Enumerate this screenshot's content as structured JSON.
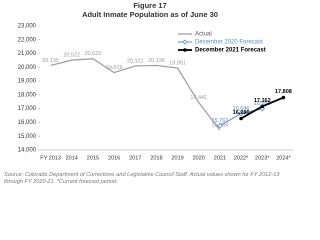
{
  "chart_data": {
    "type": "line",
    "figure_label": "Figure 17",
    "title": "Adult Inmate Population as of June 30",
    "categories": [
      "FY 2013",
      "2014",
      "2015",
      "2016",
      "2017",
      "2018",
      "2019",
      "2020",
      "2021",
      "2022*",
      "2023*",
      "2024*"
    ],
    "series": [
      {
        "name": "Actual",
        "color": "#9a9a9a",
        "values": [
          20135,
          20522,
          20623,
          19619,
          20101,
          20136,
          19951,
          17441,
          15434,
          null,
          null,
          null
        ],
        "value_labels": [
          "20,135",
          "20,522",
          "20,623",
          "19,619",
          "20,101",
          "20,136",
          "19,951",
          "17,441",
          "15,434",
          null,
          null,
          null
        ]
      },
      {
        "name": "December 2020 Forecast",
        "color": "#5b8cc9",
        "values": [
          null,
          null,
          null,
          null,
          null,
          null,
          null,
          null,
          15767,
          16646,
          16995,
          null
        ],
        "value_labels": [
          null,
          null,
          null,
          null,
          null,
          null,
          null,
          null,
          "15,767",
          "16,646",
          "16,995",
          null
        ]
      },
      {
        "name": "December 2021 Forecast",
        "color": "#000000",
        "values": [
          null,
          null,
          null,
          null,
          null,
          null,
          null,
          null,
          null,
          16286,
          17162,
          17808
        ],
        "value_labels": [
          null,
          null,
          null,
          null,
          null,
          null,
          null,
          null,
          null,
          "16,286",
          "17,162",
          "17,808"
        ]
      }
    ],
    "ylim": [
      14000,
      23000
    ],
    "yticks": [
      {
        "value": 14000,
        "label": "14,000"
      },
      {
        "value": 15000,
        "label": "15,000"
      },
      {
        "value": 16000,
        "label": "16,000"
      },
      {
        "value": 17000,
        "label": "17,000"
      },
      {
        "value": 18000,
        "label": "18,000"
      },
      {
        "value": 19000,
        "label": "19,000"
      },
      {
        "value": 20000,
        "label": "20,000"
      },
      {
        "value": 21000,
        "label": "21,000"
      },
      {
        "value": 22000,
        "label": "22,000"
      },
      {
        "value": 23000,
        "label": "23,000"
      }
    ],
    "grid": false,
    "note": "Source: Colorado Department of Corrections and Legislative Council Staff.  Actual values shown for FY 2012-13 through FY 2020-21.  *Current forecast period."
  }
}
